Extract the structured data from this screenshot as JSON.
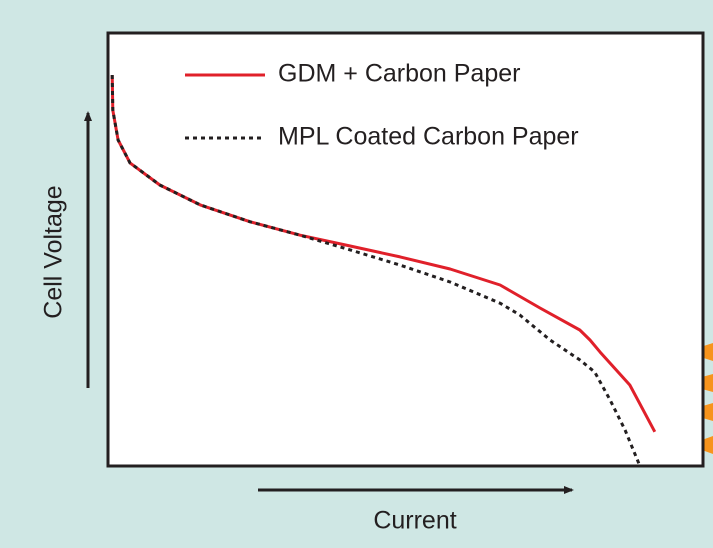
{
  "chart_data": {
    "type": "line",
    "xlabel": "Current",
    "ylabel": "Cell Voltage",
    "xlim": [
      0,
      100
    ],
    "ylim": [
      0,
      100
    ],
    "series": [
      {
        "name": "GDM + Carbon Paper",
        "color": "#e0202a",
        "dash": false,
        "x": [
          0.7,
          0.8,
          1.7,
          3.7,
          8.7,
          15.5,
          23.9,
          32.3,
          40.7,
          49.1,
          57.5,
          65.9,
          72.6,
          79.3,
          81.0,
          82.7,
          87.7,
          91.9
        ],
        "values": [
          90.3,
          82.2,
          75.3,
          70.0,
          64.9,
          60.3,
          56.4,
          53.3,
          50.8,
          48.3,
          45.5,
          41.8,
          36.5,
          31.4,
          29.1,
          26.3,
          18.7,
          7.9
        ]
      },
      {
        "name": "MPL Coated Carbon Paper",
        "color": "#231f20",
        "dash": true,
        "x": [
          0.7,
          0.8,
          1.7,
          3.7,
          8.7,
          15.5,
          23.9,
          32.3,
          40.7,
          49.1,
          57.5,
          65.9,
          69.2,
          74.3,
          79.3,
          81.8,
          84.4,
          86.9,
          89.4
        ],
        "values": [
          90.3,
          82.2,
          75.3,
          70.0,
          64.9,
          60.3,
          56.4,
          53.3,
          49.9,
          46.4,
          42.5,
          37.6,
          34.9,
          29.1,
          24.5,
          21.7,
          15.2,
          8.3,
          0
        ]
      }
    ]
  }
}
